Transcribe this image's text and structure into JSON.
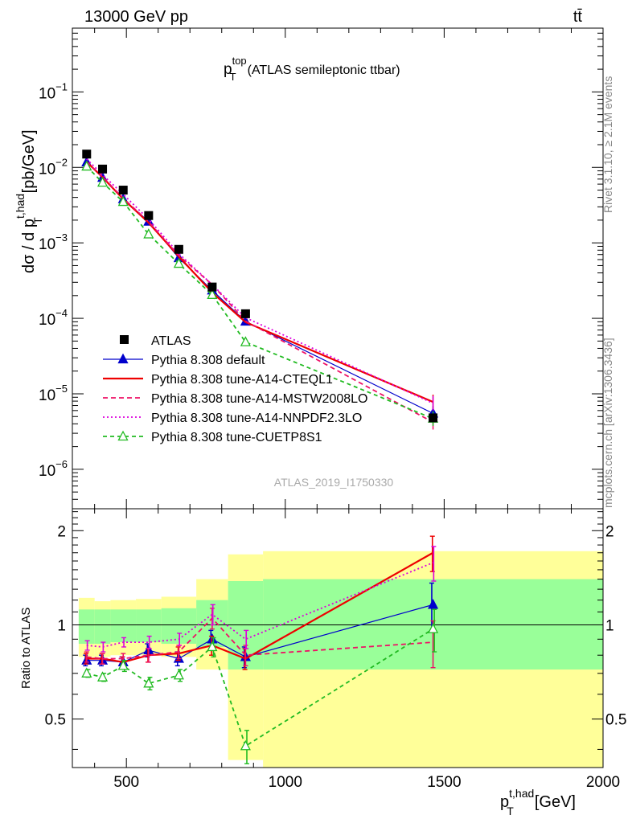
{
  "header": {
    "beam": "13000 GeV pp",
    "process": "tt̄",
    "title_main": "p",
    "title_sup": "top",
    "title_sub": "T",
    "title_rest": "(ATLAS semileptonic ttbar)",
    "analysis_id": "ATLAS_2019_I1750330",
    "side_top": "Rivet 3.1.10, ≥ 2.1M events",
    "side_bottom": "mcplots.cern.ch [arXiv:1306.3436]"
  },
  "axes": {
    "ylabel_main": "dσ / d p",
    "ylabel_main_sup": "t,had",
    "ylabel_main_sub": "T",
    "ylabel_main_unit": "[pb/GeV]",
    "ylabel_ratio": "Ratio to ATLAS",
    "xlabel_main": "p",
    "xlabel_sup": "t,had",
    "xlabel_sub": "T",
    "xlabel_unit": "[GeV]",
    "xlim": [
      330,
      2000
    ],
    "ylim_main": [
      3e-07,
      0.7
    ],
    "ylim_ratio": [
      0.35,
      2.35
    ],
    "x_ticks": [
      "500",
      "1000",
      "1500",
      "2000"
    ],
    "y_main_ticks": [
      {
        "base": "10",
        "exp": "−1"
      },
      {
        "base": "10",
        "exp": "−2"
      },
      {
        "base": "10",
        "exp": "−3"
      },
      {
        "base": "10",
        "exp": "−4"
      },
      {
        "base": "10",
        "exp": "−5"
      },
      {
        "base": "10",
        "exp": "−6"
      }
    ],
    "y_ratio_ticks": [
      "2",
      "1",
      "0.5"
    ],
    "log_y_main": true,
    "log_y_ratio": true
  },
  "chart_data": {
    "type": "line",
    "bins": [
      {
        "lo": 350,
        "hi": 400
      },
      {
        "lo": 400,
        "hi": 450
      },
      {
        "lo": 450,
        "hi": 530
      },
      {
        "lo": 530,
        "hi": 610
      },
      {
        "lo": 610,
        "hi": 720
      },
      {
        "lo": 720,
        "hi": 820
      },
      {
        "lo": 820,
        "hi": 930
      },
      {
        "lo": 930,
        "hi": 2000
      }
    ],
    "x": [
      375,
      425,
      490,
      570,
      665,
      770,
      875,
      1465
    ],
    "data": {
      "name": "ATLAS",
      "values": [
        0.015,
        0.0095,
        0.005,
        0.0023,
        0.00082,
        0.00026,
        0.000115,
        4.8e-06
      ]
    },
    "band_yellow": [
      {
        "lo": 0.79,
        "hi": 1.22
      },
      {
        "lo": 0.79,
        "hi": 1.19
      },
      {
        "lo": 0.8,
        "hi": 1.2
      },
      {
        "lo": 0.8,
        "hi": 1.21
      },
      {
        "lo": 0.79,
        "hi": 1.23
      },
      {
        "lo": 0.72,
        "hi": 1.4
      },
      {
        "lo": 0.37,
        "hi": 1.68
      },
      {
        "lo": 0.35,
        "hi": 1.72
      }
    ],
    "band_green": [
      {
        "lo": 0.87,
        "hi": 1.12
      },
      {
        "lo": 0.87,
        "hi": 1.12
      },
      {
        "lo": 0.88,
        "hi": 1.12
      },
      {
        "lo": 0.88,
        "hi": 1.12
      },
      {
        "lo": 0.87,
        "hi": 1.13
      },
      {
        "lo": 0.85,
        "hi": 1.2
      },
      {
        "lo": 0.72,
        "hi": 1.38
      },
      {
        "lo": 0.72,
        "hi": 1.4
      }
    ],
    "series": [
      {
        "name": "Pythia 8.308 default",
        "color": "#0000cc",
        "dash": "",
        "marker": "triangle-filled",
        "values": [
          0.0117,
          0.0073,
          0.0038,
          0.00192,
          0.00063,
          0.000235,
          9.1e-05,
          5.5e-06
        ],
        "ratio": [
          0.77,
          0.77,
          0.76,
          0.83,
          0.78,
          0.9,
          0.79,
          1.16
        ],
        "ratio_err": [
          0.03,
          0.03,
          0.03,
          0.04,
          0.04,
          0.06,
          0.06,
          0.2
        ]
      },
      {
        "name": "Pythia 8.308 tune-A14-CTEQL1",
        "color": "#ee0000",
        "dash": "",
        "marker": "none",
        "values": [
          0.0118,
          0.0074,
          0.0038,
          0.00185,
          0.00066,
          0.00022,
          8.9e-05,
          7.8e-06
        ],
        "ratio": [
          0.78,
          0.78,
          0.76,
          0.8,
          0.81,
          0.86,
          0.78,
          1.7
        ],
        "ratio_err": [
          0.03,
          0.03,
          0.03,
          0.04,
          0.04,
          0.06,
          0.06,
          0.22
        ]
      },
      {
        "name": "Pythia 8.308 tune-A14-MSTW2008LO",
        "color": "#ee1166",
        "dash": "6,4",
        "marker": "none",
        "values": [
          0.0119,
          0.0075,
          0.0039,
          0.0019,
          0.00068,
          0.00028,
          9.2e-05,
          4.2e-06
        ],
        "ratio": [
          0.79,
          0.78,
          0.78,
          0.8,
          0.82,
          1.05,
          0.8,
          0.88
        ],
        "ratio_err": [
          0.03,
          0.03,
          0.03,
          0.04,
          0.04,
          0.08,
          0.06,
          0.15
        ]
      },
      {
        "name": "Pythia 8.308 tune-A14-NNPDF2.3LO",
        "color": "#dd00dd",
        "dash": "2,3",
        "marker": "none",
        "values": [
          0.0129,
          0.008,
          0.0044,
          0.00205,
          0.00072,
          0.00028,
          0.000102,
          7.5e-06
        ],
        "ratio": [
          0.86,
          0.85,
          0.88,
          0.88,
          0.9,
          1.08,
          0.9,
          1.58
        ],
        "ratio_err": [
          0.03,
          0.03,
          0.03,
          0.04,
          0.04,
          0.08,
          0.06,
          0.2
        ]
      },
      {
        "name": "Pythia 8.308 tune-CUETP8S1",
        "color": "#22bb22",
        "dash": "5,4",
        "marker": "triangle-open",
        "values": [
          0.0103,
          0.0063,
          0.0035,
          0.0013,
          0.00053,
          0.000205,
          4.85e-05,
          4.7e-06
        ],
        "ratio": [
          0.7,
          0.68,
          0.74,
          0.65,
          0.69,
          0.85,
          0.41,
          0.97
        ],
        "ratio_err": [
          0.02,
          0.02,
          0.03,
          0.03,
          0.03,
          0.06,
          0.05,
          0.15
        ]
      }
    ]
  }
}
